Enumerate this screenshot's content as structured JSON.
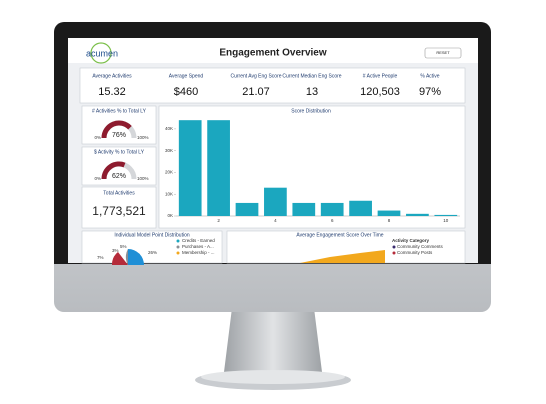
{
  "header": {
    "logo": "acumen",
    "title": "Engagement Overview",
    "button": "RESET"
  },
  "kpis": [
    {
      "label": "Average Activities",
      "value": "15.32"
    },
    {
      "label": "Average Spend",
      "value": "$460"
    },
    {
      "label": "Current Avg Eng Score",
      "value": "21.07"
    },
    {
      "label": "Current Median Eng Score",
      "value": "13"
    },
    {
      "label": "# Active People",
      "value": "120,503"
    },
    {
      "label": "% Active",
      "value": "97%"
    }
  ],
  "gauges": [
    {
      "title": "# Activities % to Total LY",
      "value": 76,
      "value_label": "76%",
      "min_label": "0%",
      "max_label": "100%"
    },
    {
      "title": "$ Activity % to Total LY",
      "value": 62,
      "value_label": "62%",
      "min_label": "0%",
      "max_label": "100%"
    }
  ],
  "total": {
    "title": "Total Activities",
    "value": "1,773,521"
  },
  "chart_data": {
    "type": "bar",
    "title": "Score Distribution",
    "categories": [
      null,
      "2",
      null,
      "4",
      null,
      "6",
      null,
      "8",
      null,
      "10"
    ],
    "values": [
      44000,
      44000,
      6000,
      13000,
      6000,
      6000,
      7000,
      2500,
      1000,
      500
    ],
    "color": "#1ba7bf",
    "ylim": [
      0,
      45000
    ],
    "yticks": [
      {
        "value": 0,
        "label": "0K"
      },
      {
        "value": 10000,
        "label": "10K"
      },
      {
        "value": 20000,
        "label": "20K"
      },
      {
        "value": 30000,
        "label": "30K"
      },
      {
        "value": 40000,
        "label": "40K"
      }
    ]
  },
  "pie_panel": {
    "title": "Individual Model Point Distribution",
    "slice_labels": [
      "5%",
      "3%",
      "7%",
      "26%"
    ],
    "legend": [
      "Credits - Earned",
      "Purchases - A...",
      "Membership - ..."
    ]
  },
  "area_panel": {
    "title": "Average Engagement Score Over Time",
    "legend_title": "Activity Category",
    "legend": [
      "Community Comments",
      "Community Posts"
    ]
  }
}
